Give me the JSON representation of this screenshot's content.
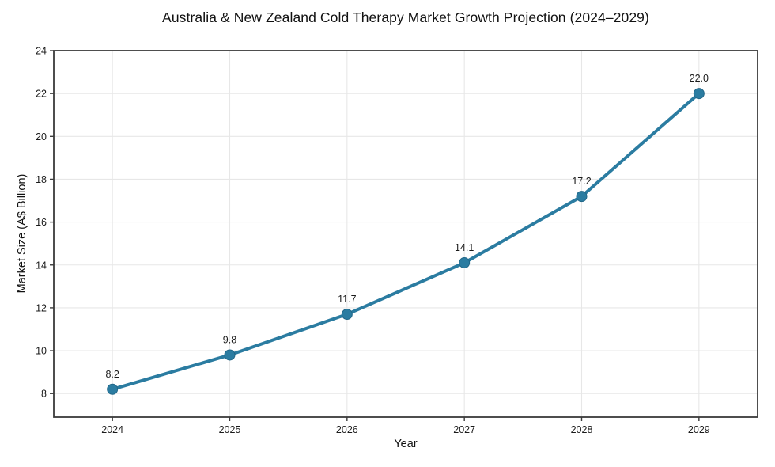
{
  "chart": {
    "title": "Australia & New Zealand Cold Therapy Market Growth Projection (2024–2029)",
    "xlabel": "Year",
    "ylabel": "Market Size (A$ Billion)"
  },
  "chart_data": {
    "type": "line",
    "title": "Australia & New Zealand Cold Therapy Market Growth Projection (2024–2029)",
    "xlabel": "Year",
    "ylabel": "Market Size (A$ Billion)",
    "x": [
      2024,
      2025,
      2026,
      2027,
      2028,
      2029
    ],
    "values": [
      8.2,
      9.8,
      11.7,
      14.1,
      17.2,
      22.0
    ],
    "point_labels": [
      "8.2",
      "9.8",
      "11.7",
      "14.1",
      "17.2",
      "22.0"
    ],
    "xticks": [
      "2024",
      "2025",
      "2026",
      "2027",
      "2028",
      "2029"
    ],
    "yticks": [
      8,
      10,
      12,
      14,
      16,
      18,
      20,
      22,
      24
    ],
    "xlim": [
      2023.5,
      2029.5
    ],
    "ylim": [
      6.9,
      24
    ],
    "grid": true,
    "legend": false,
    "colors": {
      "line": "#2b7ca1",
      "marker_fill": "#2b7ca1",
      "marker_edge": "#226management788",
      "marker_edge_fix": "#226788",
      "grid": "#e7e7e7",
      "spine": "#3b3b3b",
      "tick": "#3b3b3b",
      "text": "#1a1a1a",
      "background": "#ffffff"
    }
  }
}
